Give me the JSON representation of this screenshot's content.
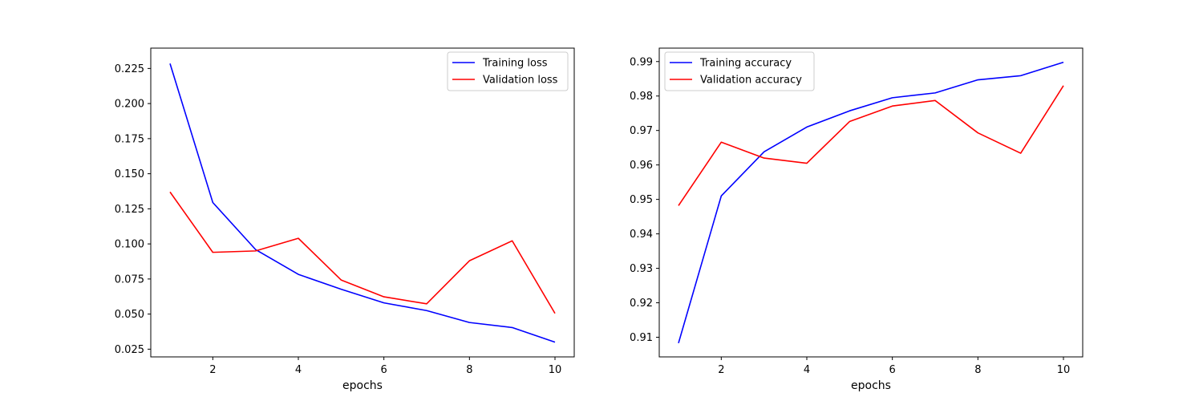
{
  "chart_data": [
    {
      "type": "line",
      "title": "",
      "xlabel": "epochs",
      "ylabel": "",
      "x": [
        1,
        2,
        3,
        4,
        5,
        6,
        7,
        8,
        9,
        10
      ],
      "xlim": [
        0.55,
        10.45
      ],
      "ylim": [
        0.0195,
        0.2395
      ],
      "xticks": [
        2,
        4,
        6,
        8,
        10
      ],
      "yticks": [
        0.025,
        0.05,
        0.075,
        0.1,
        0.125,
        0.15,
        0.175,
        0.2,
        0.225
      ],
      "ytick_labels": [
        "0.025",
        "0.050",
        "0.075",
        "0.100",
        "0.125",
        "0.150",
        "0.175",
        "0.200",
        "0.225"
      ],
      "legend_position": "upper-right",
      "grid": false,
      "series": [
        {
          "name": "Training loss",
          "color": "#0000ff",
          "values": [
            0.2285,
            0.1295,
            0.096,
            0.0783,
            0.0677,
            0.058,
            0.0525,
            0.044,
            0.0404,
            0.03
          ]
        },
        {
          "name": "Validation loss",
          "color": "#ff0000",
          "values": [
            0.137,
            0.094,
            0.095,
            0.104,
            0.0743,
            0.0623,
            0.0573,
            0.088,
            0.1022,
            0.0505
          ]
        }
      ]
    },
    {
      "type": "line",
      "title": "",
      "xlabel": "epochs",
      "ylabel": "",
      "x": [
        1,
        2,
        3,
        4,
        5,
        6,
        7,
        8,
        9,
        10
      ],
      "xlim": [
        0.55,
        10.45
      ],
      "ylim": [
        0.9043,
        0.9939
      ],
      "xticks": [
        2,
        4,
        6,
        8,
        10
      ],
      "yticks": [
        0.91,
        0.92,
        0.93,
        0.94,
        0.95,
        0.96,
        0.97,
        0.98,
        0.99
      ],
      "ytick_labels": [
        "0.91",
        "0.92",
        "0.93",
        "0.94",
        "0.95",
        "0.96",
        "0.97",
        "0.98",
        "0.99"
      ],
      "legend_position": "upper-left",
      "grid": false,
      "series": [
        {
          "name": "Training accuracy",
          "color": "#0000ff",
          "values": [
            0.9083,
            0.951,
            0.9638,
            0.971,
            0.9757,
            0.9795,
            0.9809,
            0.9847,
            0.9859,
            0.9898
          ]
        },
        {
          "name": "Validation accuracy",
          "color": "#ff0000",
          "values": [
            0.9482,
            0.9666,
            0.962,
            0.9605,
            0.9726,
            0.9771,
            0.9787,
            0.9693,
            0.9634,
            0.983
          ]
        }
      ]
    }
  ]
}
